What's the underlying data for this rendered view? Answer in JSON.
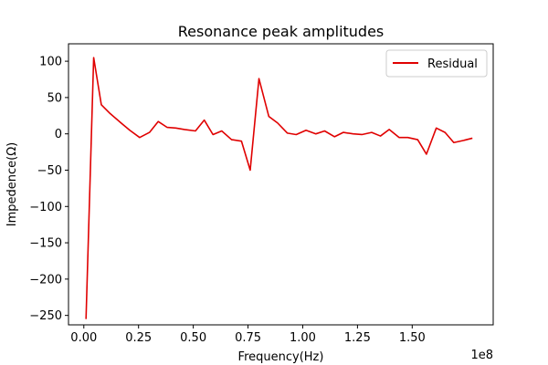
{
  "chart_data": {
    "type": "line",
    "title": "Resonance peak amplitudes",
    "xlabel": "Frequency(Hz)",
    "ylabel": "Impedence(Ω)",
    "x_offset_label": "1e8",
    "xlim": [
      -7000000,
      187000000
    ],
    "ylim": [
      -263,
      124
    ],
    "x_ticks": [
      0,
      25000000,
      50000000,
      75000000,
      100000000,
      125000000,
      150000000
    ],
    "x_tick_labels": [
      "0.00",
      "0.25",
      "0.50",
      "0.75",
      "1.00",
      "1.25",
      "1.50"
    ],
    "y_ticks": [
      -250,
      -200,
      -150,
      -100,
      -50,
      0,
      50,
      100
    ],
    "y_tick_labels": [
      "−250",
      "−200",
      "−150",
      "−100",
      "−50",
      "0",
      "50",
      "100"
    ],
    "legend_position": "top-right",
    "grid": false,
    "series": [
      {
        "name": "Residual",
        "color": "#e00000",
        "x": [
          1000000,
          4500000,
          8000000,
          12000000,
          17000000,
          21000000,
          25500000,
          30000000,
          34000000,
          38000000,
          42000000,
          46000000,
          51000000,
          55000000,
          59000000,
          63000000,
          67500000,
          72000000,
          76000000,
          80000000,
          84500000,
          88500000,
          93000000,
          97000000,
          101500000,
          106000000,
          110000000,
          114500000,
          118500000,
          123000000,
          127000000,
          131500000,
          135500000,
          139500000,
          144000000,
          148000000,
          152500000,
          156500000,
          161000000,
          165000000,
          169000000,
          173500000,
          177500000
        ],
        "values": [
          -255,
          105,
          40,
          28,
          15,
          5,
          -5,
          2,
          17,
          9,
          8,
          6,
          4,
          19,
          -1,
          4,
          -8,
          -10,
          -50,
          76,
          24,
          15,
          1,
          -1,
          5,
          0,
          4,
          -4,
          2,
          0,
          -1,
          2,
          -3,
          6,
          -5,
          -5,
          -8,
          -28,
          8,
          2,
          -12,
          -9,
          -6
        ]
      }
    ]
  }
}
